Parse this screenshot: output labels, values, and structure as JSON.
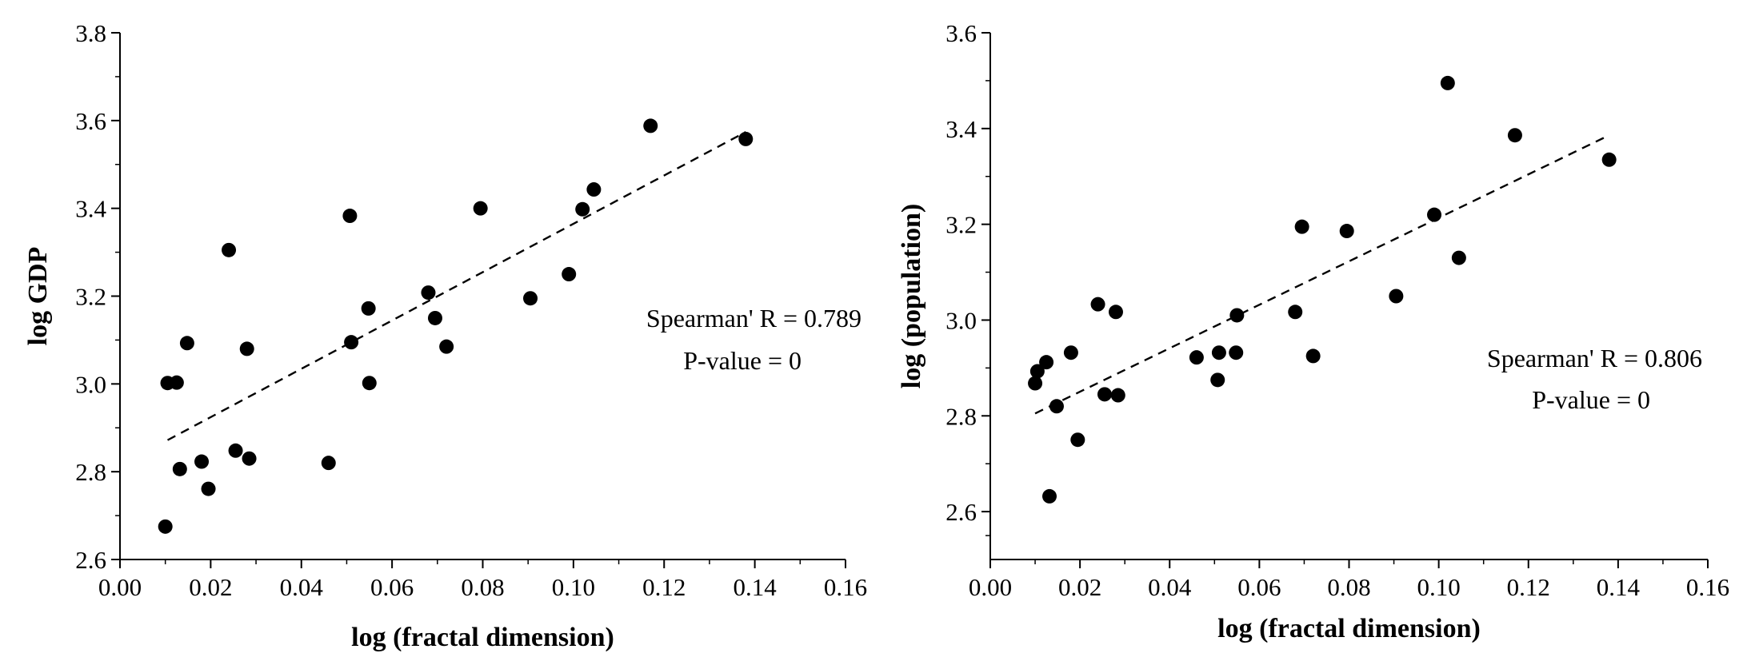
{
  "chart_data": [
    {
      "type": "scatter",
      "xlabel": "log (fractal dimension)",
      "ylabel": "log GDP",
      "xlim": [
        0,
        0.16
      ],
      "ylim": [
        2.6,
        3.8
      ],
      "x_ticks": [
        0,
        0.02,
        0.04,
        0.06,
        0.08,
        0.1,
        0.12,
        0.14,
        0.16
      ],
      "x_tick_labels": [
        "0.00",
        "0.02",
        "0.04",
        "0.06",
        "0.08",
        "0.10",
        "0.12",
        "0.14",
        "0.16"
      ],
      "y_ticks": [
        2.6,
        2.8,
        3.0,
        3.2,
        3.4,
        3.6,
        3.8
      ],
      "y_tick_labels": [
        "2.6",
        "2.8",
        "3.0",
        "3.2",
        "3.4",
        "3.6",
        "3.8"
      ],
      "annotations": [
        "Spearman' R = 0.789",
        "P-value = 0"
      ],
      "trendline": {
        "x": [
          0.0105,
          0.138
        ],
        "y": [
          2.872,
          3.574
        ]
      },
      "points": [
        [
          0.01,
          2.675
        ],
        [
          0.0105,
          3.002
        ],
        [
          0.0125,
          3.003
        ],
        [
          0.0132,
          2.806
        ],
        [
          0.0148,
          3.093
        ],
        [
          0.018,
          2.823
        ],
        [
          0.0195,
          2.761
        ],
        [
          0.024,
          3.305
        ],
        [
          0.0255,
          2.848
        ],
        [
          0.028,
          3.08
        ],
        [
          0.0285,
          2.83
        ],
        [
          0.046,
          2.82
        ],
        [
          0.0507,
          3.383
        ],
        [
          0.051,
          3.095
        ],
        [
          0.0548,
          3.172
        ],
        [
          0.055,
          3.002
        ],
        [
          0.068,
          3.208
        ],
        [
          0.0695,
          3.15
        ],
        [
          0.072,
          3.085
        ],
        [
          0.0795,
          3.4
        ],
        [
          0.0905,
          3.195
        ],
        [
          0.099,
          3.25
        ],
        [
          0.102,
          3.398
        ],
        [
          0.1045,
          3.443
        ],
        [
          0.117,
          3.588
        ],
        [
          0.138,
          3.558
        ]
      ]
    },
    {
      "type": "scatter",
      "xlabel": "log (fractal dimension)",
      "ylabel": "log (population)",
      "xlim": [
        0,
        0.16
      ],
      "ylim": [
        2.5,
        3.6
      ],
      "x_ticks": [
        0,
        0.02,
        0.04,
        0.06,
        0.08,
        0.1,
        0.12,
        0.14,
        0.16
      ],
      "x_tick_labels": [
        "0.00",
        "0.02",
        "0.04",
        "0.06",
        "0.08",
        "0.10",
        "0.12",
        "0.14",
        "0.16"
      ],
      "y_ticks": [
        2.6,
        2.8,
        3.0,
        3.2,
        3.4,
        3.6
      ],
      "y_tick_labels": [
        "2.6",
        "2.8",
        "3.0",
        "3.2",
        "3.4",
        "3.6"
      ],
      "annotations": [
        "Spearman' R = 0.806",
        "P-value = 0"
      ],
      "trendline": {
        "x": [
          0.01,
          0.138
        ],
        "y": [
          2.805,
          3.386
        ]
      },
      "points": [
        [
          0.01,
          2.868
        ],
        [
          0.0105,
          2.893
        ],
        [
          0.0125,
          2.912
        ],
        [
          0.0132,
          2.632
        ],
        [
          0.0148,
          2.82
        ],
        [
          0.018,
          2.932
        ],
        [
          0.0195,
          2.75
        ],
        [
          0.024,
          3.033
        ],
        [
          0.0255,
          2.845
        ],
        [
          0.028,
          3.017
        ],
        [
          0.0285,
          2.843
        ],
        [
          0.046,
          2.922
        ],
        [
          0.0507,
          2.875
        ],
        [
          0.051,
          2.932
        ],
        [
          0.0548,
          2.932
        ],
        [
          0.055,
          3.01
        ],
        [
          0.068,
          3.017
        ],
        [
          0.0695,
          3.195
        ],
        [
          0.072,
          2.925
        ],
        [
          0.0795,
          3.186
        ],
        [
          0.0905,
          3.05
        ],
        [
          0.099,
          3.22
        ],
        [
          0.102,
          3.495
        ],
        [
          0.1045,
          3.13
        ],
        [
          0.117,
          3.386
        ],
        [
          0.138,
          3.335
        ]
      ]
    }
  ]
}
